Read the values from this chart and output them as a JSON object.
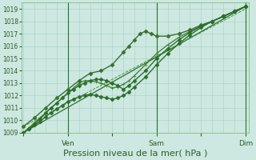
{
  "bg_color": "#cce8e0",
  "grid_color": "#a8cfc4",
  "text_color": "#2d5a2d",
  "ylim": [
    1009,
    1019.5
  ],
  "yticks": [
    1009,
    1010,
    1011,
    1012,
    1013,
    1014,
    1015,
    1016,
    1017,
    1018,
    1019
  ],
  "xlabel": "Pression niveau de la mer( hPa )",
  "xlabel_fontsize": 8,
  "xtick_labels": [
    "",
    "Ven",
    "",
    "Sam",
    "",
    "Dim"
  ],
  "xtick_positions": [
    0,
    48,
    96,
    144,
    192,
    240
  ],
  "xlim": [
    -2,
    244
  ],
  "series": [
    {
      "x": [
        0,
        240
      ],
      "y": [
        1009.0,
        1019.2
      ],
      "style": "-",
      "marker": null,
      "ms": 0,
      "lw": 0.9,
      "color": "#2d6e2d",
      "zorder": 2
    },
    {
      "x": [
        0,
        6,
        12,
        18,
        24,
        30,
        36,
        42,
        48,
        54,
        60,
        66,
        72,
        78,
        84,
        90,
        96,
        102,
        108,
        114,
        120,
        132,
        144,
        156,
        168,
        180,
        192,
        204,
        216,
        228,
        240
      ],
      "y": [
        1009.0,
        1009.3,
        1009.7,
        1010.1,
        1010.6,
        1011.0,
        1011.4,
        1011.8,
        1012.2,
        1012.5,
        1012.8,
        1013.0,
        1013.2,
        1013.3,
        1013.3,
        1013.2,
        1013.0,
        1012.8,
        1012.5,
        1012.8,
        1013.2,
        1014.0,
        1015.0,
        1015.8,
        1016.5,
        1017.1,
        1017.6,
        1018.0,
        1018.4,
        1018.8,
        1019.2
      ],
      "style": "-",
      "marker": "D",
      "ms": 2.5,
      "lw": 1.0,
      "color": "#2d6e2d",
      "zorder": 5
    },
    {
      "x": [
        0,
        6,
        12,
        18,
        24,
        30,
        36,
        42,
        48,
        54,
        60,
        66,
        72,
        78,
        84,
        90,
        96,
        102,
        108,
        114,
        120,
        132,
        144,
        156,
        168,
        180,
        192,
        204,
        216,
        228,
        240
      ],
      "y": [
        1009.0,
        1009.3,
        1009.6,
        1009.9,
        1010.3,
        1010.6,
        1010.9,
        1011.2,
        1011.5,
        1011.7,
        1011.9,
        1012.0,
        1012.1,
        1012.0,
        1011.9,
        1011.8,
        1011.7,
        1011.8,
        1012.0,
        1012.3,
        1012.7,
        1013.5,
        1014.5,
        1015.4,
        1016.2,
        1016.9,
        1017.5,
        1018.0,
        1018.4,
        1018.8,
        1019.2
      ],
      "style": "-",
      "marker": "D",
      "ms": 2.5,
      "lw": 1.0,
      "color": "#2d6e2d",
      "zorder": 5
    },
    {
      "x": [
        0,
        6,
        12,
        18,
        24,
        30,
        36,
        42,
        48,
        54,
        60,
        66,
        72,
        78,
        84,
        90,
        96,
        102,
        108,
        114,
        120,
        132,
        144,
        156,
        168,
        180,
        192,
        204,
        216,
        228,
        240
      ],
      "y": [
        1009.0,
        1009.4,
        1009.8,
        1010.2,
        1010.6,
        1011.0,
        1011.4,
        1011.8,
        1012.2,
        1012.6,
        1013.0,
        1013.2,
        1013.2,
        1013.1,
        1013.0,
        1012.8,
        1012.6,
        1012.7,
        1012.9,
        1013.2,
        1013.6,
        1014.5,
        1015.4,
        1016.1,
        1016.7,
        1017.2,
        1017.6,
        1018.0,
        1018.4,
        1018.8,
        1019.2
      ],
      "style": "-",
      "marker": "+",
      "ms": 3.5,
      "lw": 0.9,
      "color": "#3a8030",
      "zorder": 4
    },
    {
      "x": [
        0,
        12,
        24,
        36,
        48,
        60,
        72,
        84,
        96,
        108,
        114,
        120,
        126,
        132,
        138,
        144,
        156,
        168,
        180,
        192,
        204,
        216,
        228,
        240
      ],
      "y": [
        1009.5,
        1010.2,
        1011.0,
        1011.8,
        1012.5,
        1013.2,
        1013.8,
        1014.0,
        1014.5,
        1015.5,
        1016.0,
        1016.5,
        1017.0,
        1017.2,
        1017.0,
        1016.8,
        1016.8,
        1017.0,
        1017.3,
        1017.7,
        1018.0,
        1018.4,
        1018.8,
        1019.2
      ],
      "style": "-",
      "marker": "D",
      "ms": 2.5,
      "lw": 1.0,
      "color": "#3a7030",
      "zorder": 4
    },
    {
      "x": [
        0,
        240
      ],
      "y": [
        1009.5,
        1019.0
      ],
      "style": "--",
      "marker": null,
      "ms": 0,
      "lw": 0.7,
      "color": "#4a9040",
      "zorder": 2
    }
  ],
  "vline_positions": [
    48,
    144,
    240
  ],
  "vline_color": "#2d6e2d",
  "vline_lw": 0.8,
  "figsize": [
    3.2,
    2.0
  ],
  "dpi": 100
}
